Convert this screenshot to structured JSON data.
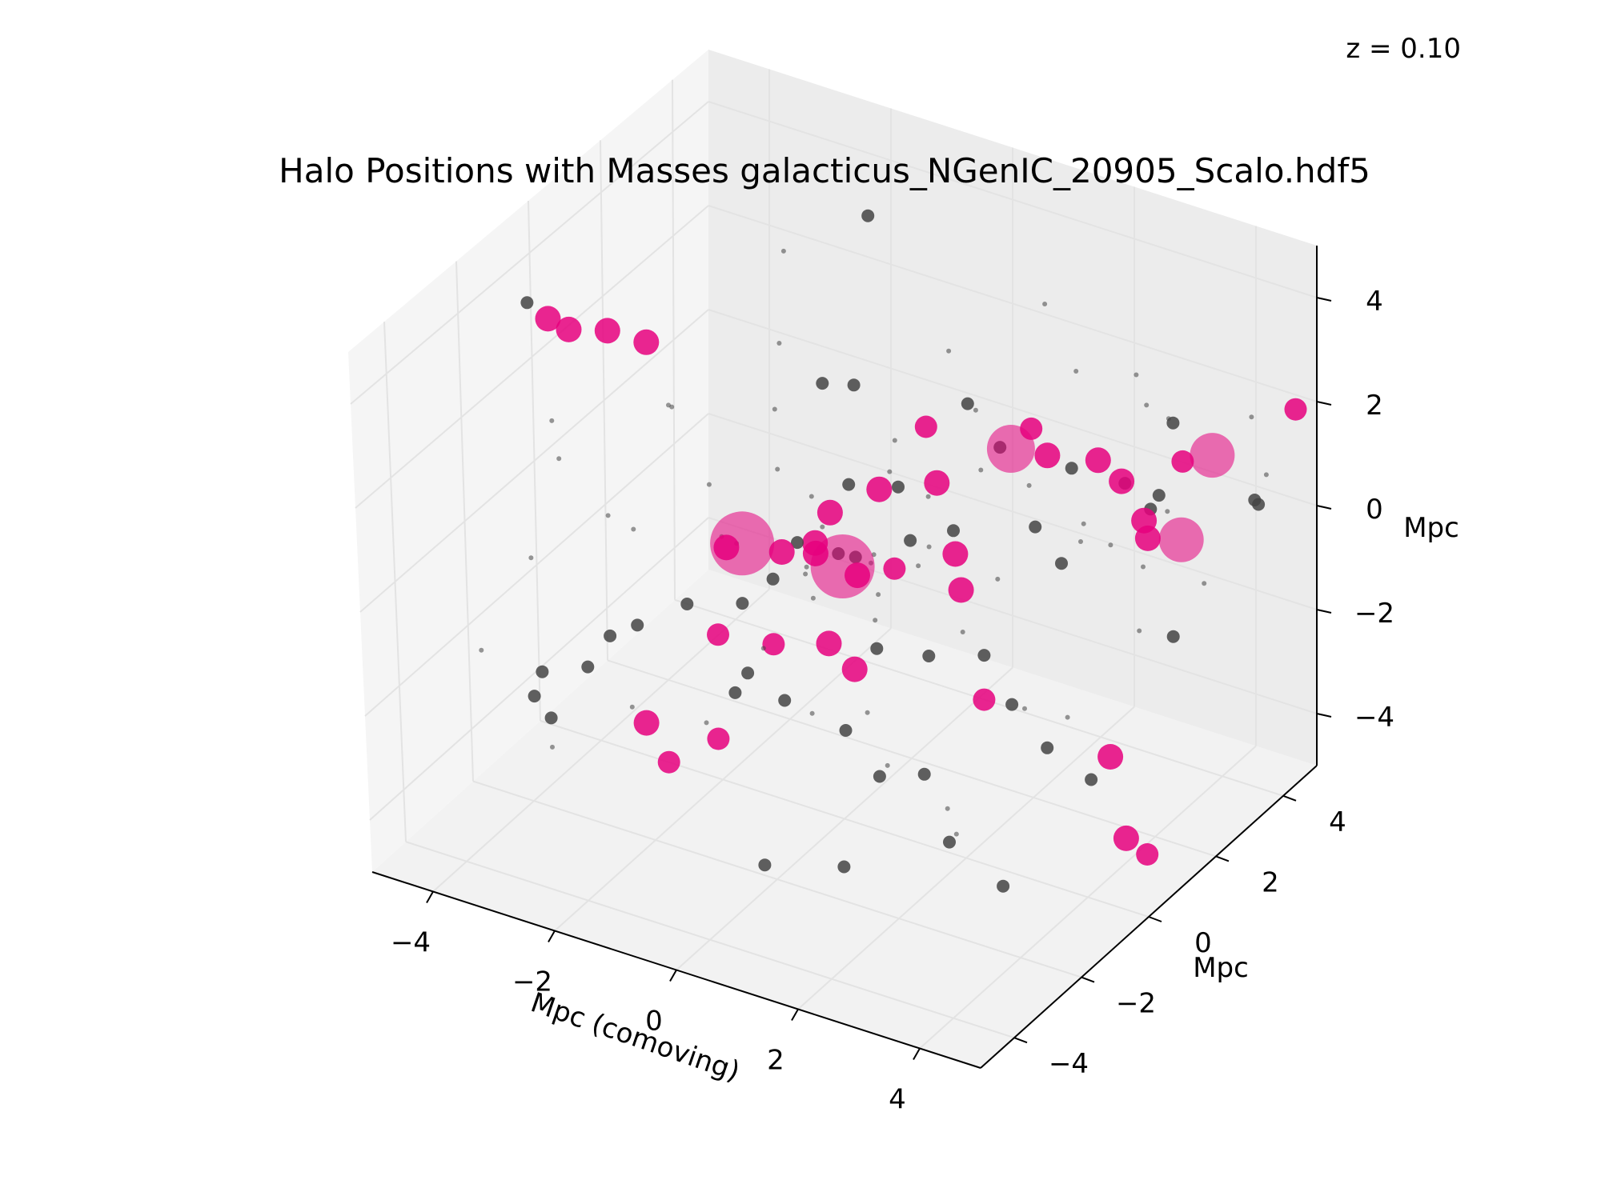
{
  "chart_data": {
    "type": "scatter3d",
    "title": "Halo Positions with Masses galacticus_NGenIC_20905_Scalo.hdf5",
    "annotation": "z = 0.10",
    "xlabel": "Mpc (comoving)",
    "ylabel": "Mpc",
    "zlabel": "Mpc",
    "xlim": [
      -5,
      5
    ],
    "ylim": [
      -5,
      5
    ],
    "zlim": [
      -5,
      5
    ],
    "xticks": [
      -4,
      -2,
      0,
      2,
      4
    ],
    "yticks": [
      -4,
      -2,
      0,
      2,
      4
    ],
    "zticks": [
      -4,
      -2,
      0,
      2,
      4
    ],
    "xtick_labels": [
      "−4",
      "−2",
      "0",
      "2",
      "4"
    ],
    "ytick_labels": [
      "−4",
      "−2",
      "0",
      "2",
      "4"
    ],
    "ztick_labels": [
      "−4",
      "−2",
      "0",
      "2",
      "4"
    ],
    "grid": true,
    "colors": {
      "massive_halo": "#e6007e",
      "small_halo": "#444444",
      "pane": "#f2f2f2",
      "grid": "#e3e3e3"
    },
    "series": [
      {
        "color": "#e6007e",
        "points": [
          [
            -4.6,
            -0.2,
            3.0,
            16
          ],
          [
            -4.2,
            -0.3,
            3.0,
            16
          ],
          [
            -3.5,
            -0.4,
            3.3,
            16
          ],
          [
            -2.8,
            -0.5,
            3.4,
            16
          ],
          [
            -1.0,
            -1.0,
            0.5,
            40
          ],
          [
            0.3,
            -0.4,
            0.2,
            40
          ],
          [
            -1.5,
            -0.6,
            0.0,
            16
          ],
          [
            -0.7,
            -0.4,
            0.1,
            16
          ],
          [
            -0.2,
            -0.3,
            0.2,
            16
          ],
          [
            0.6,
            -0.5,
            0.2,
            16
          ],
          [
            1.1,
            -0.3,
            0.4,
            14
          ],
          [
            1.7,
            0.4,
            0.5,
            16
          ],
          [
            1.9,
            0.2,
            0.0,
            16
          ],
          [
            1.3,
            0.6,
            1.6,
            16
          ],
          [
            0.7,
            0.0,
            1.6,
            16
          ],
          [
            1.2,
            0.5,
            2.7,
            14
          ],
          [
            2.3,
            1.0,
            2.4,
            30
          ],
          [
            2.9,
            1.0,
            2.5,
            16
          ],
          [
            3.5,
            1.4,
            2.4,
            16
          ],
          [
            4.0,
            1.2,
            2.3,
            16
          ],
          [
            4.3,
            1.3,
            1.6,
            16
          ],
          [
            4.3,
            1.4,
            1.2,
            16
          ],
          [
            4.5,
            2.0,
            0.9,
            28
          ],
          [
            4.5,
            2.9,
            2.0,
            28
          ],
          [
            4.6,
            1.9,
            2.5,
            14
          ],
          [
            -1.5,
            -0.9,
            -1.5,
            14
          ],
          [
            -0.7,
            -0.7,
            -1.5,
            14
          ],
          [
            0.1,
            -0.5,
            -1.3,
            16
          ],
          [
            0.4,
            -0.3,
            -1.8,
            16
          ],
          [
            2.3,
            0.1,
            -1.9,
            14
          ],
          [
            -2.6,
            -0.5,
            -4.6,
            14
          ],
          [
            -2.9,
            -0.6,
            -3.9,
            16
          ],
          [
            -1.6,
            -0.8,
            -3.6,
            14
          ],
          [
            4.6,
            -0.3,
            -1.9,
            16
          ],
          [
            4.6,
            0.1,
            -3.7,
            16
          ],
          [
            5.0,
            0.0,
            -3.8,
            14
          ],
          [
            5.0,
            4.4,
            2.2,
            14
          ],
          [
            -0.5,
            0.2,
            0.0,
            16
          ],
          [
            -0.3,
            0.3,
            0.6,
            16
          ],
          [
            3.0,
            0.4,
            3.4,
            14
          ]
        ]
      },
      {
        "color": "#444444",
        "points": [
          [
            -5.0,
            -0.1,
            3.1,
            8
          ],
          [
            -1.2,
            3.0,
            4.4,
            8
          ],
          [
            -0.2,
            0.0,
            3.3,
            8
          ],
          [
            0.2,
            0.2,
            3.3,
            8
          ],
          [
            0.6,
            0.7,
            1.2,
            8
          ],
          [
            1.3,
            1.5,
            2.6,
            8
          ],
          [
            2.0,
            1.2,
            2.2,
            8
          ],
          [
            3.0,
            1.5,
            2.0,
            8
          ],
          [
            3.7,
            1.8,
            1.8,
            8
          ],
          [
            4.0,
            2.0,
            1.3,
            8
          ],
          [
            4.2,
            1.9,
            1.7,
            8
          ],
          [
            4.9,
            3.4,
            1.0,
            8
          ],
          [
            4.5,
            4.2,
            0.3,
            8
          ],
          [
            -0.5,
            -0.3,
            0.3,
            8
          ],
          [
            0.0,
            0.0,
            0.1,
            8
          ],
          [
            0.4,
            -0.2,
            0.3,
            8
          ],
          [
            -0.8,
            -0.5,
            -0.4,
            8
          ],
          [
            -1.2,
            -0.7,
            -0.9,
            8
          ],
          [
            -2.0,
            -0.9,
            -1.1,
            8
          ],
          [
            -2.6,
            -1.3,
            -1.5,
            8
          ],
          [
            -3.0,
            -1.4,
            -1.8,
            8
          ],
          [
            -3.5,
            -1.2,
            -2.7,
            8
          ],
          [
            -4.2,
            -1.3,
            -3.0,
            8
          ],
          [
            -4.4,
            -1.2,
            -3.6,
            8
          ],
          [
            -3.9,
            -1.6,
            -3.6,
            8
          ],
          [
            -1.3,
            -0.8,
            -2.6,
            8
          ],
          [
            -1.2,
            -0.6,
            -2.3,
            8
          ],
          [
            -0.6,
            -0.6,
            -2.6,
            8
          ],
          [
            0.4,
            -0.6,
            -2.8,
            8
          ],
          [
            1.0,
            -0.7,
            -3.4,
            8
          ],
          [
            1.8,
            -0.8,
            -3.0,
            8
          ],
          [
            2.3,
            -1.0,
            -4.0,
            8
          ],
          [
            3.4,
            -1.4,
            -4.2,
            8
          ],
          [
            0.6,
            0.0,
            -1.5,
            8
          ],
          [
            1.4,
            0.1,
            -1.4,
            8
          ],
          [
            2.2,
            0.3,
            -1.2,
            8
          ],
          [
            2.7,
            0.2,
            -1.9,
            8
          ],
          [
            3.5,
            -0.2,
            -2.2,
            8
          ],
          [
            4.1,
            0.0,
            -2.7,
            8
          ],
          [
            4.0,
            2.6,
            -1.5,
            8
          ],
          [
            1.0,
            -1.8,
            -4.5,
            8
          ],
          [
            -0.2,
            -2.0,
            -4.8,
            8
          ],
          [
            2.5,
            1.3,
            0.8,
            8
          ],
          [
            3.1,
            1.0,
            0.5,
            8
          ],
          [
            -0.1,
            0.5,
            1.1,
            8
          ],
          [
            0.9,
            0.5,
            0.4,
            8
          ],
          [
            1.5,
            0.7,
            0.7,
            8
          ],
          [
            3.8,
            3.0,
            2.3,
            8
          ]
        ]
      },
      {
        "color": "#444444",
        "points": [
          [
            -2.0,
            2.0,
            4.0,
            3
          ],
          [
            -1.5,
            1.0,
            3.0,
            3
          ],
          [
            -1.0,
            0.0,
            2.5,
            3
          ],
          [
            -0.5,
            -0.8,
            2.0,
            3
          ],
          [
            0.5,
            0.8,
            2.0,
            3
          ],
          [
            1.0,
            1.5,
            3.5,
            3
          ],
          [
            2.0,
            2.5,
            4.2,
            3
          ],
          [
            2.8,
            2.0,
            3.5,
            3
          ],
          [
            3.2,
            3.0,
            3.0,
            3
          ],
          [
            3.6,
            2.6,
            2.8,
            3
          ],
          [
            4.2,
            2.2,
            3.0,
            3
          ],
          [
            4.8,
            3.5,
            2.5,
            3
          ],
          [
            -3.5,
            -2.0,
            2.5,
            3
          ],
          [
            -4.0,
            -1.0,
            1.0,
            3
          ],
          [
            -3.0,
            0.5,
            1.5,
            3
          ],
          [
            -2.5,
            -1.5,
            0.5,
            3
          ],
          [
            -1.8,
            0.2,
            -0.5,
            3
          ],
          [
            -1.0,
            0.8,
            -1.0,
            3
          ],
          [
            0.0,
            1.0,
            -0.5,
            3
          ],
          [
            0.8,
            1.2,
            0.8,
            3
          ],
          [
            1.5,
            1.5,
            1.4,
            3
          ],
          [
            2.0,
            2.0,
            1.0,
            3
          ],
          [
            2.6,
            2.5,
            0.2,
            3
          ],
          [
            3.4,
            2.8,
            -0.5,
            3
          ],
          [
            4.0,
            3.5,
            -1.0,
            3
          ],
          [
            -0.4,
            -1.5,
            -1.0,
            3
          ],
          [
            0.2,
            -1.2,
            -2.2,
            3
          ],
          [
            1.0,
            -1.0,
            -2.0,
            3
          ],
          [
            1.6,
            -1.5,
            -2.5,
            3
          ],
          [
            2.4,
            -1.2,
            -3.2,
            3
          ],
          [
            3.0,
            -2.0,
            -3.0,
            3
          ],
          [
            -0.8,
            -2.5,
            -2.0,
            3
          ],
          [
            -2.2,
            -2.2,
            -2.4,
            3
          ],
          [
            -3.2,
            -2.8,
            -3.2,
            3
          ],
          [
            -4.5,
            -2.5,
            -2.0,
            3
          ],
          [
            -4.8,
            -0.5,
            -1.5,
            3
          ],
          [
            -3.8,
            0.0,
            -0.6,
            3
          ],
          [
            -2.8,
            1.5,
            -1.5,
            3
          ],
          [
            -2.0,
            2.5,
            -2.5,
            3
          ],
          [
            -1.2,
            3.2,
            -3.0,
            3
          ],
          [
            0.6,
            3.5,
            -2.2,
            3
          ],
          [
            1.8,
            3.8,
            -1.2,
            3
          ],
          [
            3.0,
            4.2,
            -0.4,
            3
          ],
          [
            4.4,
            4.6,
            0.6,
            3
          ],
          [
            0.3,
            0.4,
            -0.2,
            3
          ],
          [
            -0.2,
            -0.4,
            -0.6,
            3
          ],
          [
            0.7,
            -0.2,
            -0.8,
            3
          ],
          [
            1.2,
            0.2,
            0.2,
            3
          ],
          [
            -0.6,
            0.3,
            0.8,
            3
          ],
          [
            0.1,
            -0.6,
            1.0,
            3
          ],
          [
            1.8,
            -0.5,
            1.2,
            3
          ],
          [
            2.5,
            -0.8,
            0.0,
            3
          ],
          [
            -1.4,
            -1.2,
            1.6,
            3
          ],
          [
            -2.4,
            -0.6,
            2.4,
            3
          ],
          [
            3.8,
            1.2,
            1.0,
            3
          ],
          [
            4.6,
            0.6,
            0.0,
            3
          ],
          [
            4.2,
            -0.8,
            -1.0,
            3
          ],
          [
            3.2,
            -0.3,
            -1.5,
            3
          ],
          [
            -0.3,
            2.0,
            0.4,
            3
          ],
          [
            0.9,
            2.4,
            1.8,
            3
          ]
        ]
      }
    ]
  }
}
